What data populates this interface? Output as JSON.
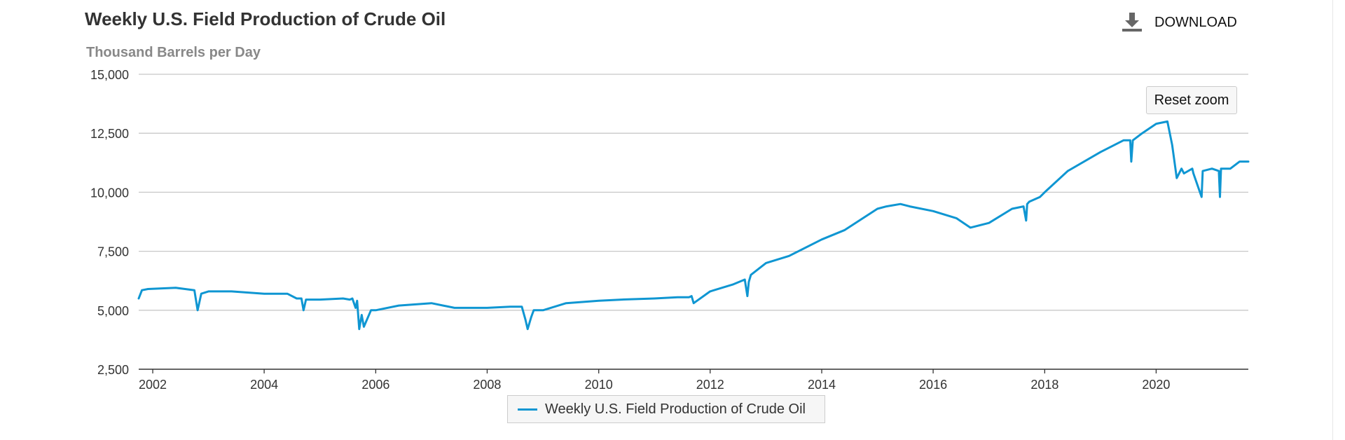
{
  "chart": {
    "title": "Weekly U.S. Field Production of Crude Oil",
    "unit_label": "Thousand Barrels per Day",
    "download_label": "DOWNLOAD",
    "reset_zoom_label": "Reset zoom",
    "legend_label": "Weekly U.S. Field Production of Crude Oil",
    "line_color": "#0f96d2",
    "grid_color": "#c8c8c8",
    "icon_color": "#666666"
  },
  "chart_data": {
    "type": "line",
    "title": "Weekly U.S. Field Production of Crude Oil",
    "ylabel": "Thousand Barrels per Day",
    "xlabel": "",
    "x_axis": "date",
    "xlim": [
      "2001-10-01",
      "2021-08-27"
    ],
    "ylim": [
      2500,
      15000
    ],
    "yticks": [
      2500,
      5000,
      7500,
      10000,
      12500,
      15000
    ],
    "ytick_labels": [
      "2,500",
      "5,000",
      "7,500",
      "10,000",
      "12,500",
      "15,000"
    ],
    "xticks": [
      "2002",
      "2004",
      "2006",
      "2008",
      "2010",
      "2012",
      "2014",
      "2016",
      "2018",
      "2020"
    ],
    "grid": true,
    "legend_position": "bottom-center",
    "series": [
      {
        "name": "Weekly U.S. Field Production of Crude Oil",
        "x": [
          "2001-10-01",
          "2001-10-22",
          "2001-12-01",
          "2002-06-01",
          "2002-08-01",
          "2002-10-01",
          "2002-10-22",
          "2002-11-15",
          "2003-01-01",
          "2003-06-01",
          "2004-01-01",
          "2004-06-01",
          "2004-08-01",
          "2004-09-01",
          "2004-09-15",
          "2004-10-01",
          "2005-01-01",
          "2005-06-01",
          "2005-07-15",
          "2005-08-01",
          "2005-08-22",
          "2005-09-01",
          "2005-09-15",
          "2005-10-01",
          "2005-10-15",
          "2005-12-01",
          "2006-01-01",
          "2006-06-01",
          "2007-01-01",
          "2007-06-01",
          "2008-01-01",
          "2008-06-01",
          "2008-08-15",
          "2008-09-08",
          "2008-09-22",
          "2008-10-15",
          "2008-11-01",
          "2009-01-01",
          "2009-06-01",
          "2010-01-01",
          "2010-06-01",
          "2011-01-01",
          "2011-06-01",
          "2011-08-15",
          "2011-09-01",
          "2011-09-15",
          "2012-01-01",
          "2012-06-01",
          "2012-08-15",
          "2012-09-01",
          "2012-09-10",
          "2012-09-24",
          "2013-01-01",
          "2013-06-01",
          "2014-01-01",
          "2014-06-01",
          "2015-01-01",
          "2015-03-01",
          "2015-06-01",
          "2015-08-01",
          "2016-01-01",
          "2016-06-01",
          "2016-09-01",
          "2017-01-01",
          "2017-06-01",
          "2017-08-15",
          "2017-09-01",
          "2017-09-08",
          "2017-09-22",
          "2017-12-01",
          "2018-01-01",
          "2018-06-01",
          "2019-01-01",
          "2019-06-01",
          "2019-07-15",
          "2019-07-22",
          "2019-08-01",
          "2019-10-01",
          "2020-01-01",
          "2020-03-15",
          "2020-04-15",
          "2020-05-15",
          "2020-06-15",
          "2020-07-01",
          "2020-08-25",
          "2020-09-01",
          "2020-10-25",
          "2020-11-01",
          "2021-01-01",
          "2021-02-15",
          "2021-02-22",
          "2021-03-01",
          "2021-05-01",
          "2021-07-01",
          "2021-08-27"
        ],
        "values": [
          5500,
          5850,
          5900,
          5950,
          5900,
          5850,
          5000,
          5700,
          5800,
          5800,
          5700,
          5700,
          5500,
          5500,
          5000,
          5450,
          5450,
          5500,
          5450,
          5500,
          5100,
          5400,
          4200,
          4800,
          4300,
          5000,
          5000,
          5200,
          5300,
          5100,
          5100,
          5150,
          5150,
          4600,
          4200,
          4700,
          5000,
          5000,
          5300,
          5400,
          5450,
          5500,
          5550,
          5550,
          5600,
          5300,
          5800,
          6100,
          6300,
          5600,
          6200,
          6500,
          7000,
          7300,
          8000,
          8400,
          9300,
          9400,
          9500,
          9400,
          9200,
          8900,
          8500,
          8700,
          9300,
          9400,
          8800,
          9500,
          9600,
          9800,
          10000,
          10900,
          11700,
          12200,
          12200,
          11300,
          12200,
          12500,
          12900,
          13000,
          12000,
          10600,
          11000,
          10800,
          11000,
          10800,
          9800,
          10900,
          11000,
          10900,
          9800,
          11000,
          11000,
          11300,
          11300
        ]
      }
    ]
  }
}
